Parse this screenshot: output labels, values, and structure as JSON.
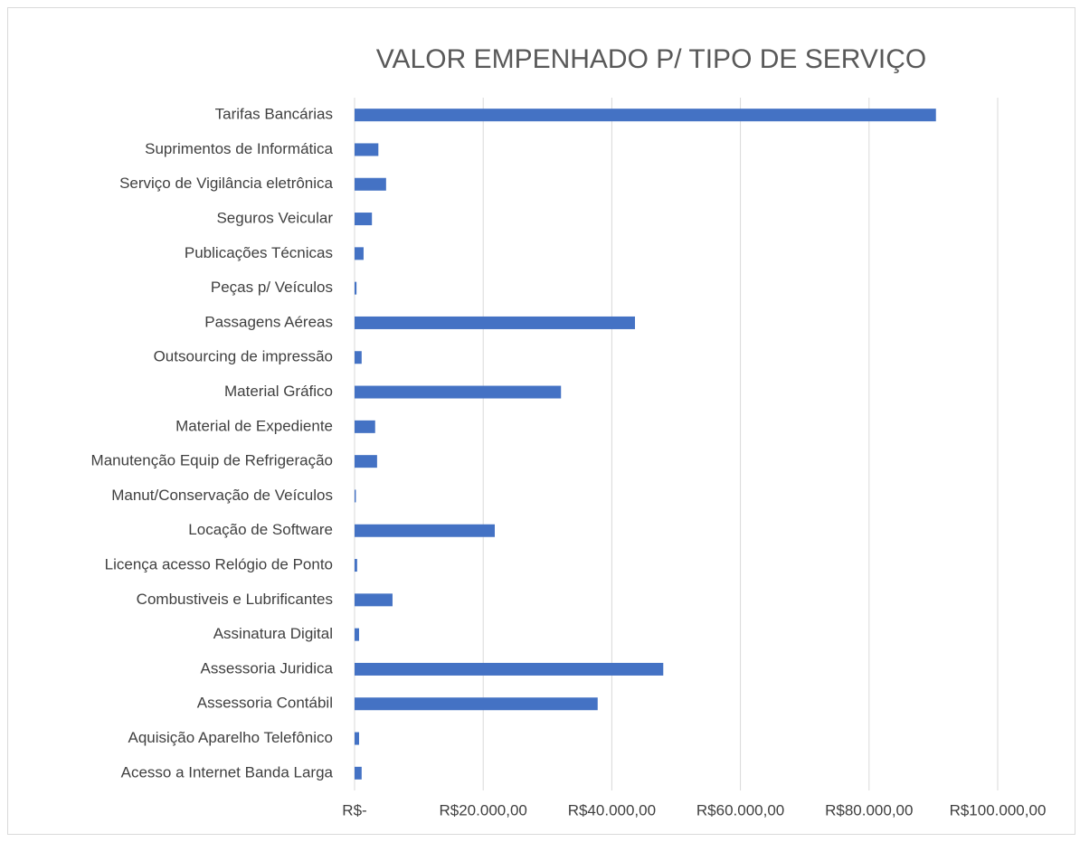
{
  "chart_data": {
    "type": "hbar",
    "title": "VALOR EMPENHADO P/ TIPO DE SERVIÇO",
    "categories": [
      "Tarifas Bancárias",
      "Suprimentos de Informática",
      "Serviço de Vigilância eletrônica",
      "Seguros Veicular",
      "Publicações Técnicas",
      "Peças p/ Veículos",
      "Passagens Aéreas",
      "Outsourcing de impressão",
      "Material Gráfico",
      "Material de Expediente",
      "Manutenção Equip de Refrigeração",
      "Manut/Conservação de Veículos",
      "Locação de Software",
      "Licença acesso Relógio de Ponto",
      "Combustiveis e Lubrificantes",
      "Assinatura Digital",
      "Assessoria Juridica",
      "Assessoria Contábil",
      "Aquisição Aparelho Telefônico",
      "Acesso a Internet Banda Larga"
    ],
    "values": [
      90400,
      3700,
      4900,
      2700,
      1400,
      300,
      43600,
      1100,
      32100,
      3200,
      3500,
      200,
      21800,
      400,
      5900,
      700,
      48000,
      37800,
      700,
      1100
    ],
    "color": "#4472c4",
    "xlim": [
      0,
      100000
    ],
    "xticks": [
      {
        "value": 0,
        "label": "R$-"
      },
      {
        "value": 20000,
        "label": "R$20.000,00"
      },
      {
        "value": 40000,
        "label": "R$40.000,00"
      },
      {
        "value": 60000,
        "label": "R$60.000,00"
      },
      {
        "value": 80000,
        "label": "R$80.000,00"
      },
      {
        "value": 100000,
        "label": "R$100.000,00"
      }
    ],
    "grid": true
  }
}
